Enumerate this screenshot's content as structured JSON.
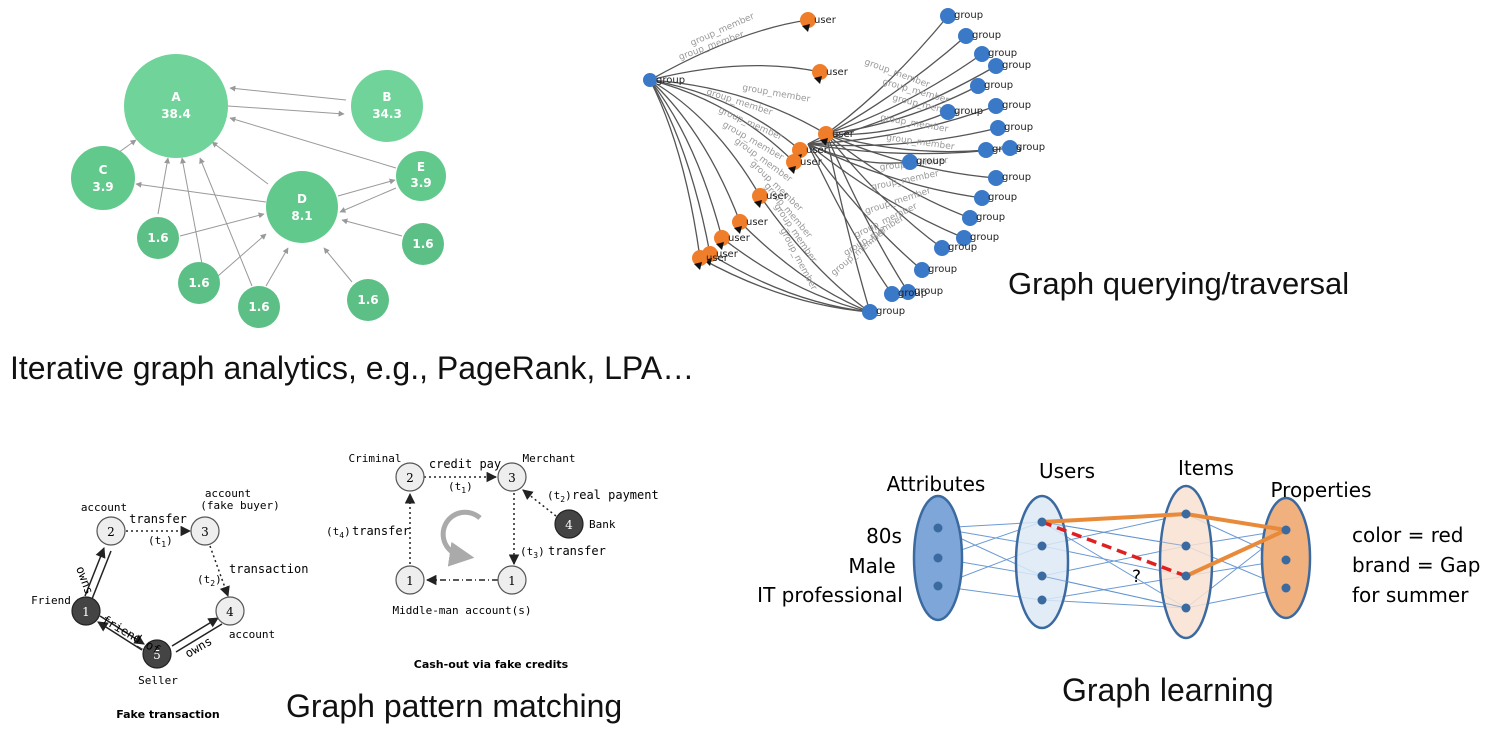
{
  "captions": {
    "pagerank": "Iterative graph analytics, e.g., PageRank, LPA…",
    "traversal": "Graph querying/traversal",
    "pattern": "Graph pattern matching",
    "learning": "Graph learning"
  },
  "pagerank": {
    "nodes": [
      {
        "id": "A",
        "label": "A",
        "value": "38.4"
      },
      {
        "id": "B",
        "label": "B",
        "value": "34.3"
      },
      {
        "id": "C",
        "label": "C",
        "value": "3.9"
      },
      {
        "id": "D",
        "label": "D",
        "value": "8.1"
      },
      {
        "id": "E",
        "label": "E",
        "value": "3.9"
      },
      {
        "id": "F",
        "label": "",
        "value": "1.6"
      },
      {
        "id": "G",
        "label": "",
        "value": "1.6"
      },
      {
        "id": "H",
        "label": "",
        "value": "1.6"
      },
      {
        "id": "I",
        "label": "",
        "value": "1.6"
      },
      {
        "id": "J",
        "label": "",
        "value": "1.6"
      }
    ],
    "colors": {
      "node_light": "#6fd39a",
      "node_dark": "#5cbf85",
      "edge": "#999999"
    }
  },
  "traversal": {
    "node_labels": {
      "group": "group",
      "user": "user"
    },
    "edge_label": "group_member",
    "colors": {
      "group": "#3a78c8",
      "user": "#f07d2a"
    }
  },
  "pattern_left": {
    "title": "Fake transaction",
    "nodes": {
      "n1": "1",
      "n2": "2",
      "n3": "3",
      "n4": "4",
      "n5": "5"
    },
    "labels": {
      "account2": "account",
      "account3a": "account",
      "account3b": "(fake buyer)",
      "account4": "account",
      "friend": "Friend",
      "seller": "Seller",
      "transfer": "transfer",
      "t1": "(t",
      "t1sub": "1",
      "t1end": ")",
      "transaction": "transaction",
      "t2": "(t",
      "t2sub": "2",
      "t2end": ")",
      "owns_left": "owns",
      "owns_right": "owns",
      "friend_of": "friend_of"
    }
  },
  "pattern_right": {
    "title": "Cash-out via fake credits",
    "nodes": {
      "n2": "2",
      "n3": "3",
      "n4": "4",
      "n1a": "1",
      "n1b": "1"
    },
    "labels": {
      "criminal": "Criminal",
      "merchant": "Merchant",
      "bank": "Bank",
      "credit_pay": "credit pay",
      "t1": "(t",
      "t1sub": "1",
      "t1end": ")",
      "real_payment": "real payment",
      "t2pre": "(t",
      "t2sub": "2",
      "t2end": ")",
      "transfer_left": "transfer",
      "t4pre": "(t",
      "t4sub": "4",
      "t4end": ")",
      "transfer_right": "transfer",
      "t3pre": "(t",
      "t3sub": "3",
      "t3end": ")",
      "middleman": "Middle-man account(s)"
    }
  },
  "learning": {
    "headers": {
      "attributes": "Attributes",
      "users": "Users",
      "items": "Items",
      "properties": "Properties"
    },
    "left_text": [
      "80s",
      "Male",
      "IT professional"
    ],
    "right_text": [
      "color = red",
      "brand = Gap",
      "for summer"
    ],
    "question": "?",
    "colors": {
      "attr_fill": "#7ea6d8",
      "user_fill": "#dce9f6",
      "item_fill": "#f8e2d2",
      "prop_fill": "#f0b17e",
      "stroke": "#3b6aa0",
      "path": "#e88a3a",
      "predict": "#e02020"
    }
  }
}
